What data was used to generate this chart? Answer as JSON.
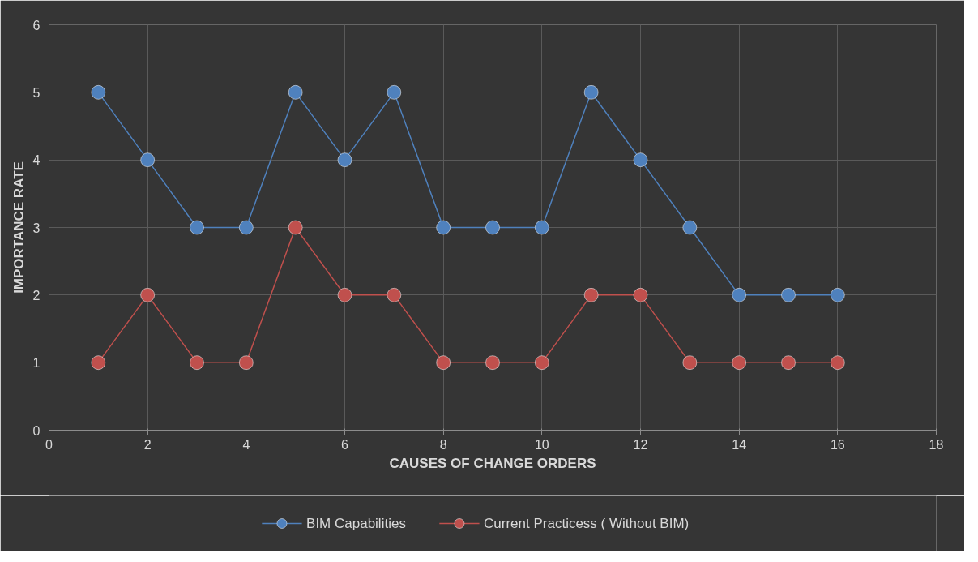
{
  "chart_data": {
    "type": "line",
    "xlabel": "CAUSES OF CHANGE ORDERS",
    "ylabel": "IMPORTANCE RATE",
    "x": [
      1,
      2,
      3,
      4,
      5,
      6,
      7,
      8,
      9,
      10,
      11,
      12,
      13,
      14,
      15,
      16
    ],
    "series": [
      {
        "name": "BIM Capabilities",
        "color": "#4f81bd",
        "values": [
          5,
          4,
          3,
          3,
          5,
          4,
          5,
          3,
          3,
          3,
          5,
          4,
          3,
          2,
          2,
          2
        ]
      },
      {
        "name": "Current Practicess ( Without BIM)",
        "color": "#c0504d",
        "values": [
          1,
          2,
          1,
          1,
          3,
          2,
          2,
          1,
          1,
          1,
          2,
          2,
          1,
          1,
          1,
          1
        ]
      }
    ],
    "xlim": [
      0,
      18
    ],
    "xticks": [
      0,
      2,
      4,
      6,
      8,
      10,
      12,
      14,
      16,
      18
    ],
    "ylim": [
      0,
      6
    ],
    "yticks": [
      0,
      1,
      2,
      3,
      4,
      5,
      6
    ],
    "grid": true,
    "legend": "bottom",
    "marker": "circle",
    "line_style": "solid"
  }
}
